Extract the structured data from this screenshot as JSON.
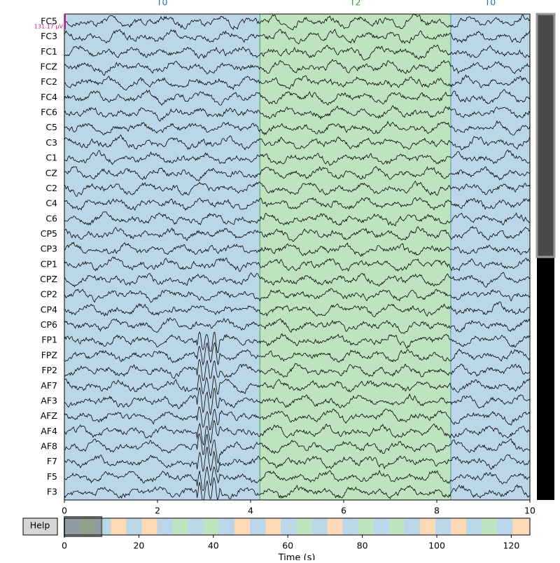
{
  "window": {
    "xlabel": "Time (s)",
    "help_button": "Help",
    "scale_label": "131.17 µV",
    "channels": [
      "FC5",
      "FC3",
      "FC1",
      "FCZ",
      "FC2",
      "FC4",
      "FC6",
      "C5",
      "C3",
      "C1",
      "CZ",
      "C2",
      "C4",
      "C6",
      "CP5",
      "CP3",
      "CP1",
      "CPZ",
      "CP2",
      "CP4",
      "CP6",
      "FP1",
      "FPZ",
      "FP2",
      "AF7",
      "AF3",
      "AFZ",
      "AF4",
      "AF8",
      "F7",
      "F5",
      "F3"
    ],
    "main_xlim": [
      0,
      10
    ],
    "main_xticks": [
      0,
      2,
      4,
      6,
      8,
      10
    ],
    "overview_xlim": [
      0,
      125
    ],
    "overview_xticks": [
      0,
      20,
      40,
      60,
      80,
      100,
      120
    ],
    "annotation_colors": {
      "T0": "#1f77b4",
      "T1": "#ff7f0e",
      "T2": "#2ca02c"
    },
    "annotations": {
      "onsets": [
        0,
        4.2,
        8.3,
        12.5,
        16.6,
        20.8,
        24.9,
        29.1,
        33.2,
        37.4,
        41.5,
        45.7,
        49.8,
        54.0,
        58.1,
        62.3,
        66.4,
        70.6,
        74.7,
        78.9,
        83.0,
        87.2,
        91.3,
        95.5,
        99.6,
        103.8,
        107.9,
        112.1,
        116.2,
        120.4
      ],
      "durations": [
        4.2,
        4.1,
        4.2,
        4.1,
        4.2,
        4.1,
        4.2,
        4.1,
        4.2,
        4.1,
        4.2,
        4.1,
        4.2,
        4.1,
        4.2,
        4.1,
        4.2,
        4.1,
        4.2,
        4.1,
        4.2,
        4.1,
        4.2,
        4.1,
        4.2,
        4.1,
        4.2,
        4.1,
        4.2,
        4.5
      ],
      "descriptions": [
        "T0",
        "T2",
        "T0",
        "T1",
        "T0",
        "T1",
        "T0",
        "T2",
        "T0",
        "T2",
        "T0",
        "T1",
        "T0",
        "T1",
        "T0",
        "T2",
        "T0",
        "T1",
        "T0",
        "T2",
        "T0",
        "T2",
        "T0",
        "T1",
        "T0",
        "T1",
        "T0",
        "T2",
        "T0",
        "T1"
      ]
    }
  }
}
